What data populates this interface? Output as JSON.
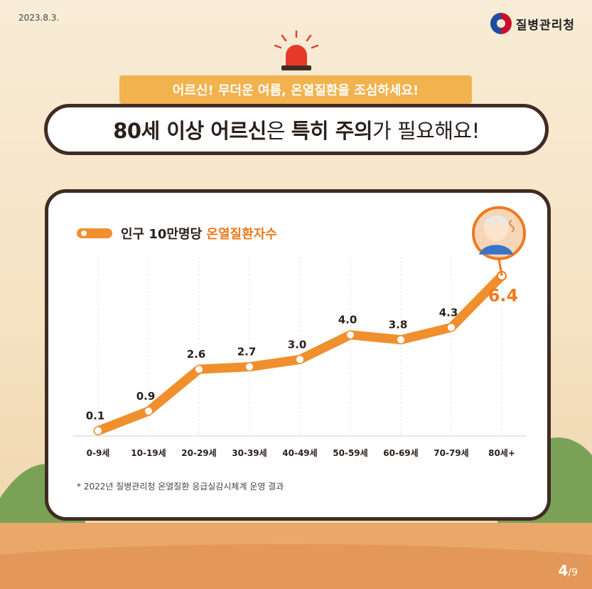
{
  "header": {
    "date": "2023.8.3.",
    "org_name": "질병관리청"
  },
  "banner": {
    "subtitle": "어르신! 무더운 여름, 온열질환을 조심하세요!",
    "title_parts": [
      {
        "text": "80세 이상 어르신",
        "bold": true
      },
      {
        "text": "은 ",
        "bold": false
      },
      {
        "text": "특히 주의",
        "bold": true
      },
      {
        "text": "가 필요해요!",
        "bold": false
      }
    ]
  },
  "legend": {
    "prefix": "인구 10만명당 ",
    "highlight": "온열질환자수"
  },
  "footnote": "* 2022년 질병관리청 온열질환 응급실감시체계 운영 결과",
  "page": {
    "current": "4",
    "total": "/9"
  },
  "colors": {
    "line": "#f08f2e",
    "highlight": "#ef7a1e",
    "border": "#3f2c22"
  },
  "icons": [
    "siren-icon",
    "elderly-avatar-icon",
    "government-logo-icon"
  ],
  "chart_data": {
    "type": "line",
    "categories": [
      "0-9세",
      "10-19세",
      "20-29세",
      "30-39세",
      "40-49세",
      "50-59세",
      "60-69세",
      "70-79세",
      "80세+"
    ],
    "values": [
      0.1,
      0.9,
      2.6,
      2.7,
      3.0,
      4.0,
      3.8,
      4.3,
      6.4
    ],
    "value_labels": [
      "0.1",
      "0.9",
      "2.6",
      "2.7",
      "3.0",
      "4.0",
      "3.8",
      "4.3",
      "6.4"
    ],
    "ylim": [
      0,
      7
    ],
    "grid": false,
    "legend_position": "top-left"
  }
}
